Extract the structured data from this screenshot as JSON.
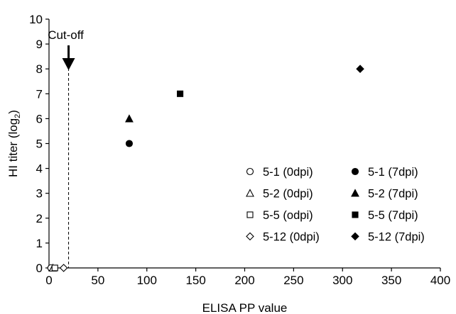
{
  "chart_data": {
    "type": "scatter",
    "xlabel": "ELISA PP value",
    "ylabel": "HI titer (log",
    "ylabel_sub": "2",
    "ylabel_end": ")",
    "xlim": [
      0,
      400
    ],
    "ylim": [
      0,
      10
    ],
    "x_ticks": [
      0,
      50,
      100,
      150,
      200,
      250,
      300,
      350,
      400
    ],
    "y_ticks": [
      0,
      1,
      2,
      3,
      4,
      5,
      6,
      7,
      8,
      9,
      10
    ],
    "grid": false,
    "legend_placement": "bottom-right",
    "cutoff": {
      "x": 20,
      "label": "Cut-off"
    },
    "series": [
      {
        "name": "5-1 (0dpi)",
        "marker": "circle",
        "filled": false,
        "points": [
          [
            2,
            0
          ]
        ]
      },
      {
        "name": "5-1 (7dpi)",
        "marker": "circle",
        "filled": true,
        "points": [
          [
            82,
            5
          ]
        ]
      },
      {
        "name": "5-2 (0dpi)",
        "marker": "triangle",
        "filled": false,
        "points": [
          [
            4,
            0
          ]
        ]
      },
      {
        "name": "5-2 (7dpi)",
        "marker": "triangle",
        "filled": true,
        "points": [
          [
            82,
            6
          ]
        ]
      },
      {
        "name": "5-5 (odpi)",
        "marker": "square",
        "filled": false,
        "points": [
          [
            6,
            0
          ]
        ]
      },
      {
        "name": "5-5 (7dpi)",
        "marker": "square",
        "filled": true,
        "points": [
          [
            134,
            7
          ]
        ]
      },
      {
        "name": "5-12 (0dpi)",
        "marker": "diamond",
        "filled": false,
        "points": [
          [
            15,
            0
          ]
        ]
      },
      {
        "name": "5-12 (7dpi)",
        "marker": "diamond",
        "filled": true,
        "points": [
          [
            318,
            8
          ]
        ]
      }
    ]
  }
}
